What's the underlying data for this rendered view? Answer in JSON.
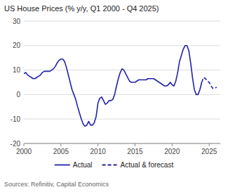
{
  "chart_data": {
    "type": "line",
    "title": "US House Prices (% y/y, Q1 2000 - Q4 2025)",
    "source": "Sources: Refinitiv, Capital Economics",
    "xlim": [
      2000,
      2026.5
    ],
    "xticks": [
      2000,
      2005,
      2010,
      2015,
      2020,
      2025
    ],
    "ylim": [
      -20,
      30
    ],
    "yticks": [
      -20,
      -10,
      0,
      10,
      20,
      30
    ],
    "grid": true,
    "legend": "bottom",
    "series": [
      {
        "name": "Actual",
        "color": "#2222aa",
        "line_style": "solid",
        "x": [
          2000.0,
          2000.25,
          2000.5,
          2000.75,
          2001.0,
          2001.25,
          2001.5,
          2001.75,
          2002.0,
          2002.25,
          2002.5,
          2002.75,
          2003.0,
          2003.25,
          2003.5,
          2003.75,
          2004.0,
          2004.25,
          2004.5,
          2004.75,
          2005.0,
          2005.25,
          2005.5,
          2005.75,
          2006.0,
          2006.25,
          2006.5,
          2006.75,
          2007.0,
          2007.25,
          2007.5,
          2007.75,
          2008.0,
          2008.25,
          2008.5,
          2008.75,
          2009.0,
          2009.25,
          2009.5,
          2009.75,
          2010.0,
          2010.25,
          2010.5,
          2010.75,
          2011.0,
          2011.25,
          2011.5,
          2011.75,
          2012.0,
          2012.25,
          2012.5,
          2012.75,
          2013.0,
          2013.25,
          2013.5,
          2013.75,
          2014.0,
          2014.25,
          2014.5,
          2014.75,
          2015.0,
          2015.25,
          2015.5,
          2015.75,
          2016.0,
          2016.25,
          2016.5,
          2016.75,
          2017.0,
          2017.25,
          2017.5,
          2017.75,
          2018.0,
          2018.25,
          2018.5,
          2018.75,
          2019.0,
          2019.25,
          2019.5,
          2019.75,
          2020.0,
          2020.25,
          2020.5,
          2020.75,
          2021.0,
          2021.25,
          2021.5,
          2021.75,
          2022.0,
          2022.25,
          2022.5,
          2022.75,
          2023.0,
          2023.25,
          2023.5,
          2023.75,
          2024.0
        ],
        "values": [
          8.5,
          9.0,
          8.0,
          7.5,
          7.0,
          6.5,
          6.5,
          7.0,
          7.5,
          8.0,
          9.0,
          9.5,
          9.5,
          9.5,
          9.5,
          10.0,
          10.5,
          11.5,
          13.0,
          14.0,
          14.5,
          14.5,
          13.5,
          11.0,
          8.0,
          5.0,
          2.0,
          0.0,
          -2.0,
          -5.0,
          -7.5,
          -10.0,
          -12.0,
          -13.0,
          -12.5,
          -11.0,
          -12.5,
          -12.5,
          -11.5,
          -9.0,
          -3.5,
          -1.5,
          -1.0,
          -2.5,
          -4.0,
          -3.5,
          -2.5,
          -2.5,
          -2.0,
          0.0,
          3.5,
          6.5,
          9.0,
          10.5,
          10.0,
          8.5,
          7.0,
          5.5,
          5.0,
          5.0,
          5.0,
          5.5,
          6.0,
          6.0,
          6.0,
          6.0,
          6.0,
          6.5,
          6.5,
          6.5,
          6.5,
          6.0,
          5.5,
          5.0,
          4.5,
          4.0,
          3.5,
          3.5,
          4.0,
          5.0,
          4.0,
          3.5,
          5.5,
          9.0,
          13.5,
          16.0,
          18.5,
          20.0,
          20.0,
          18.0,
          13.0,
          7.0,
          2.0,
          0.0,
          0.0,
          2.0,
          5.0
        ]
      },
      {
        "name": "Actual & forecast",
        "color": "#2222aa",
        "line_style": "dashed",
        "x": [
          2024.0,
          2024.25,
          2024.5,
          2024.75,
          2025.0,
          2025.25,
          2025.5,
          2025.75,
          2026.0
        ],
        "values": [
          5.0,
          7.0,
          6.5,
          5.5,
          5.0,
          3.5,
          2.5,
          2.5,
          3.0
        ]
      }
    ]
  }
}
